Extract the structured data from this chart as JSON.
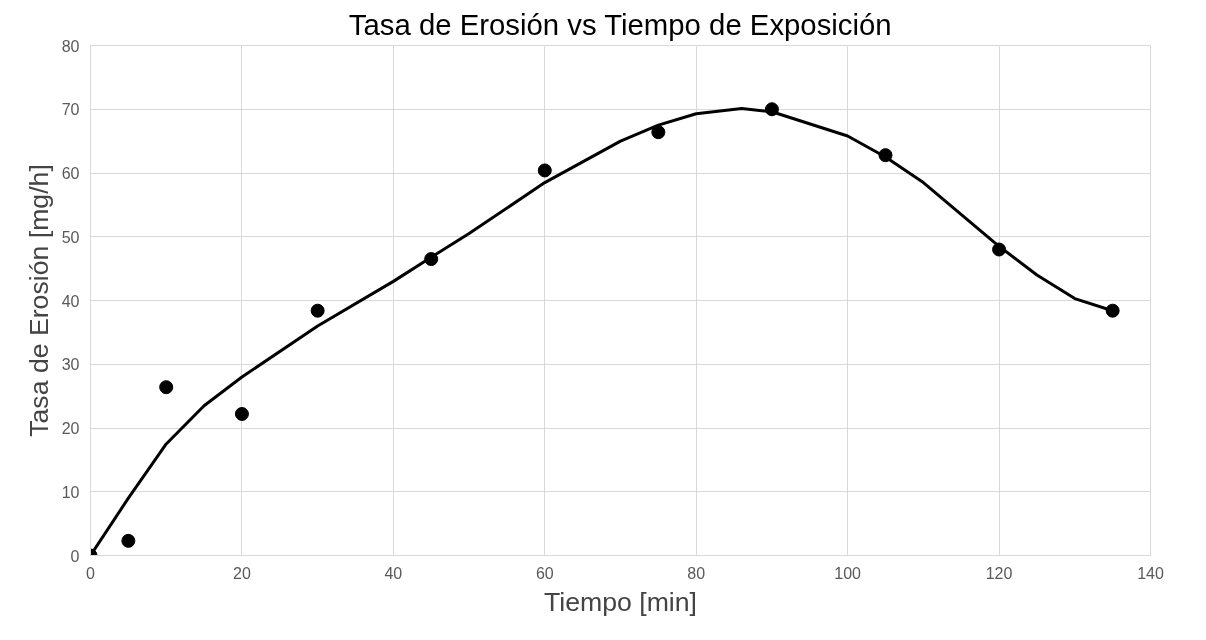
{
  "chart_data": {
    "type": "scatter",
    "title": "Tasa de Erosión vs Tiempo de Exposición",
    "xlabel": "Tiempo [min]",
    "ylabel": "Tasa de Erosión [mg/h]",
    "xlim": [
      0,
      140
    ],
    "ylim": [
      0,
      80
    ],
    "xticks": [
      0,
      20,
      40,
      60,
      80,
      100,
      120,
      140
    ],
    "yticks": [
      0,
      10,
      20,
      30,
      40,
      50,
      60,
      70,
      80
    ],
    "grid": true,
    "series": [
      {
        "color": "#000000",
        "marker": "circle",
        "x": [
          0,
          5,
          10,
          20,
          30,
          45,
          60,
          75,
          90,
          105,
          120,
          135
        ],
        "values": [
          0,
          2.3,
          26.4,
          22.2,
          38.4,
          46.5,
          60.4,
          66.4,
          70,
          62.8,
          48,
          38.4
        ]
      },
      {
        "type": "line",
        "color": "#000000",
        "marker": "none",
        "line_style": "solid",
        "x": [
          0,
          5,
          10,
          15,
          20,
          30,
          40,
          45,
          50,
          60,
          70,
          75,
          80,
          86,
          90,
          100,
          105,
          110,
          120,
          125,
          130,
          135
        ],
        "values": [
          0,
          9,
          17.5,
          23.5,
          28,
          36,
          43,
          46.8,
          50.5,
          58.5,
          65,
          67.5,
          69.3,
          70.1,
          69.6,
          65.8,
          62.5,
          58.5,
          48.5,
          44,
          40.3,
          38.4
        ]
      }
    ]
  }
}
